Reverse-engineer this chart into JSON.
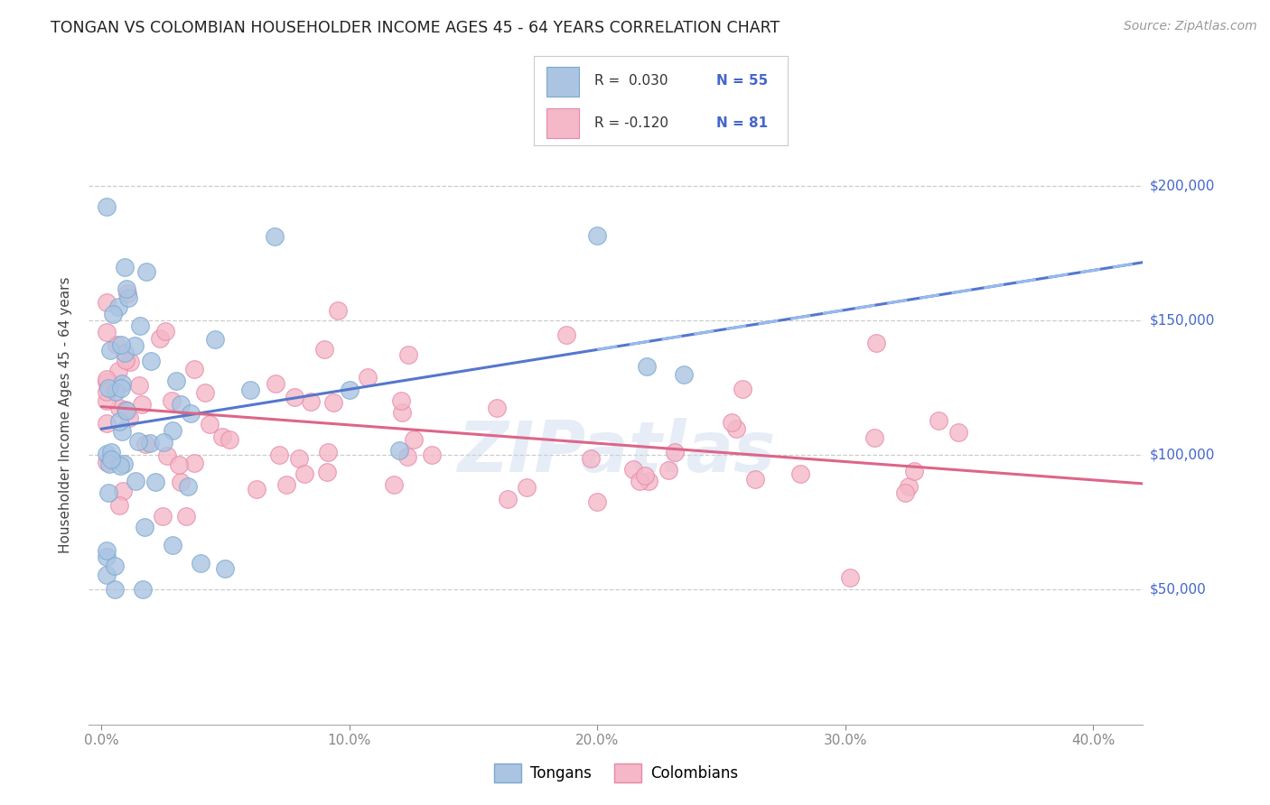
{
  "title": "TONGAN VS COLOMBIAN HOUSEHOLDER INCOME AGES 45 - 64 YEARS CORRELATION CHART",
  "source": "Source: ZipAtlas.com",
  "ylabel": "Householder Income Ages 45 - 64 years",
  "xlim": [
    -0.005,
    0.42
  ],
  "ylim": [
    0,
    230000
  ],
  "xticks": [
    0.0,
    0.1,
    0.2,
    0.3,
    0.4
  ],
  "xticklabels": [
    "0.0%",
    "10.0%",
    "20.0%",
    "30.0%",
    "40.0%"
  ],
  "yticks": [
    50000,
    100000,
    150000,
    200000
  ],
  "yticklabels": [
    "$50,000",
    "$100,000",
    "$150,000",
    "$200,000"
  ],
  "tongan_color": "#aac4e2",
  "colombian_color": "#f4b8c8",
  "tongan_edge": "#7aa8d0",
  "colombian_edge": "#e888a8",
  "trendline_tongan_color": "#5577cc",
  "trendline_colombian_color": "#dd6688",
  "trendline_tongan_dash_color": "#99bbee",
  "watermark": "ZIPatlas",
  "background_color": "#ffffff",
  "grid_color": "#cccccc",
  "yticklabel_color": "#4466cc",
  "title_color": "#222222",
  "source_color": "#999999",
  "legend_r1": "R =  0.030",
  "legend_n1": "N = 55",
  "legend_r2": "R = -0.120",
  "legend_n2": "N = 81",
  "legend_rn_color": "#333333",
  "legend_n_color": "#4466cc"
}
